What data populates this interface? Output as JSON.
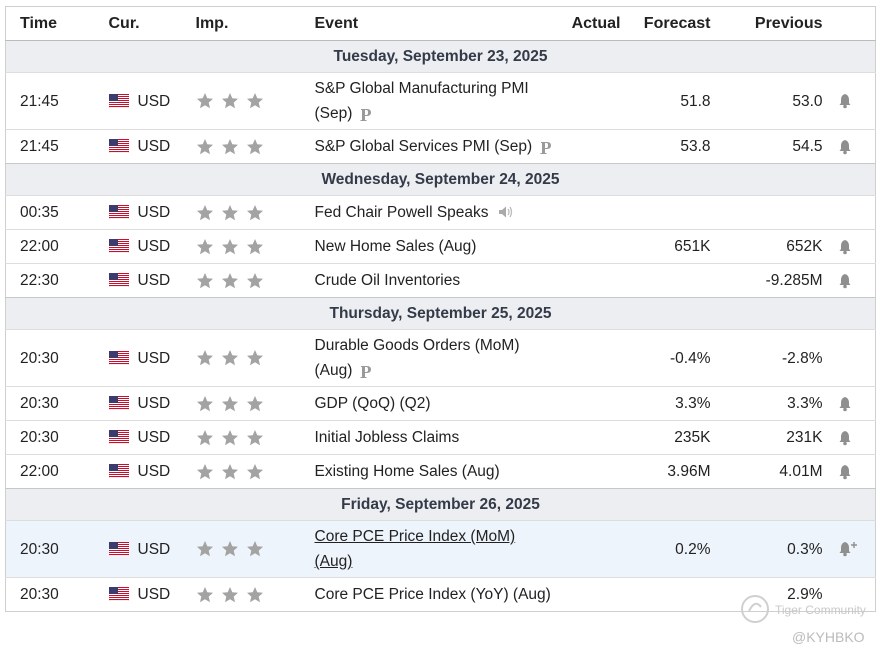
{
  "header": {
    "columns": [
      "Time",
      "Cur.",
      "Imp.",
      "Event",
      "Actual",
      "Forecast",
      "Previous"
    ]
  },
  "days": [
    {
      "date": "Tuesday, September 23, 2025",
      "events": [
        {
          "time": "21:45",
          "currency": "USD",
          "event": "S&P Global Manufacturing PMI (Sep)",
          "forecast": "51.8",
          "previous": "53.0",
          "preliminary": true,
          "alert": true
        },
        {
          "time": "21:45",
          "currency": "USD",
          "event": "S&P Global Services PMI (Sep)",
          "forecast": "53.8",
          "previous": "54.5",
          "preliminary": true,
          "alert": true
        }
      ]
    },
    {
      "date": "Wednesday, September 24, 2025",
      "events": [
        {
          "time": "00:35",
          "currency": "USD",
          "event": "Fed Chair Powell Speaks",
          "speech": true
        },
        {
          "time": "22:00",
          "currency": "USD",
          "event": "New Home Sales (Aug)",
          "forecast": "651K",
          "previous": "652K",
          "alert": true
        },
        {
          "time": "22:30",
          "currency": "USD",
          "event": "Crude Oil Inventories",
          "previous": "-9.285M",
          "alert": true
        }
      ]
    },
    {
      "date": "Thursday, September 25, 2025",
      "events": [
        {
          "time": "20:30",
          "currency": "USD",
          "event": "Durable Goods Orders (MoM) (Aug)",
          "forecast": "-0.4%",
          "previous": "-2.8%",
          "preliminary": true
        },
        {
          "time": "20:30",
          "currency": "USD",
          "event": "GDP (QoQ) (Q2)",
          "forecast": "3.3%",
          "previous": "3.3%",
          "alert": true
        },
        {
          "time": "20:30",
          "currency": "USD",
          "event": "Initial Jobless Claims",
          "forecast": "235K",
          "previous": "231K",
          "alert": true
        },
        {
          "time": "22:00",
          "currency": "USD",
          "event": "Existing Home Sales (Aug)",
          "forecast": "3.96M",
          "previous": "4.01M",
          "alert": true
        }
      ]
    },
    {
      "date": "Friday, September 26, 2025",
      "events": [
        {
          "time": "20:30",
          "currency": "USD",
          "event": "Core PCE Price Index (MoM) (Aug)",
          "forecast": "0.2%",
          "previous": "0.3%",
          "alert": true,
          "highlighted": true
        },
        {
          "time": "20:30",
          "currency": "USD",
          "event": "Core PCE Price Index (YoY) (Aug)",
          "previous": "2.9%"
        }
      ]
    }
  ],
  "watermark": {
    "brand": "Tiger Community",
    "handle": "@KYHBKO"
  }
}
